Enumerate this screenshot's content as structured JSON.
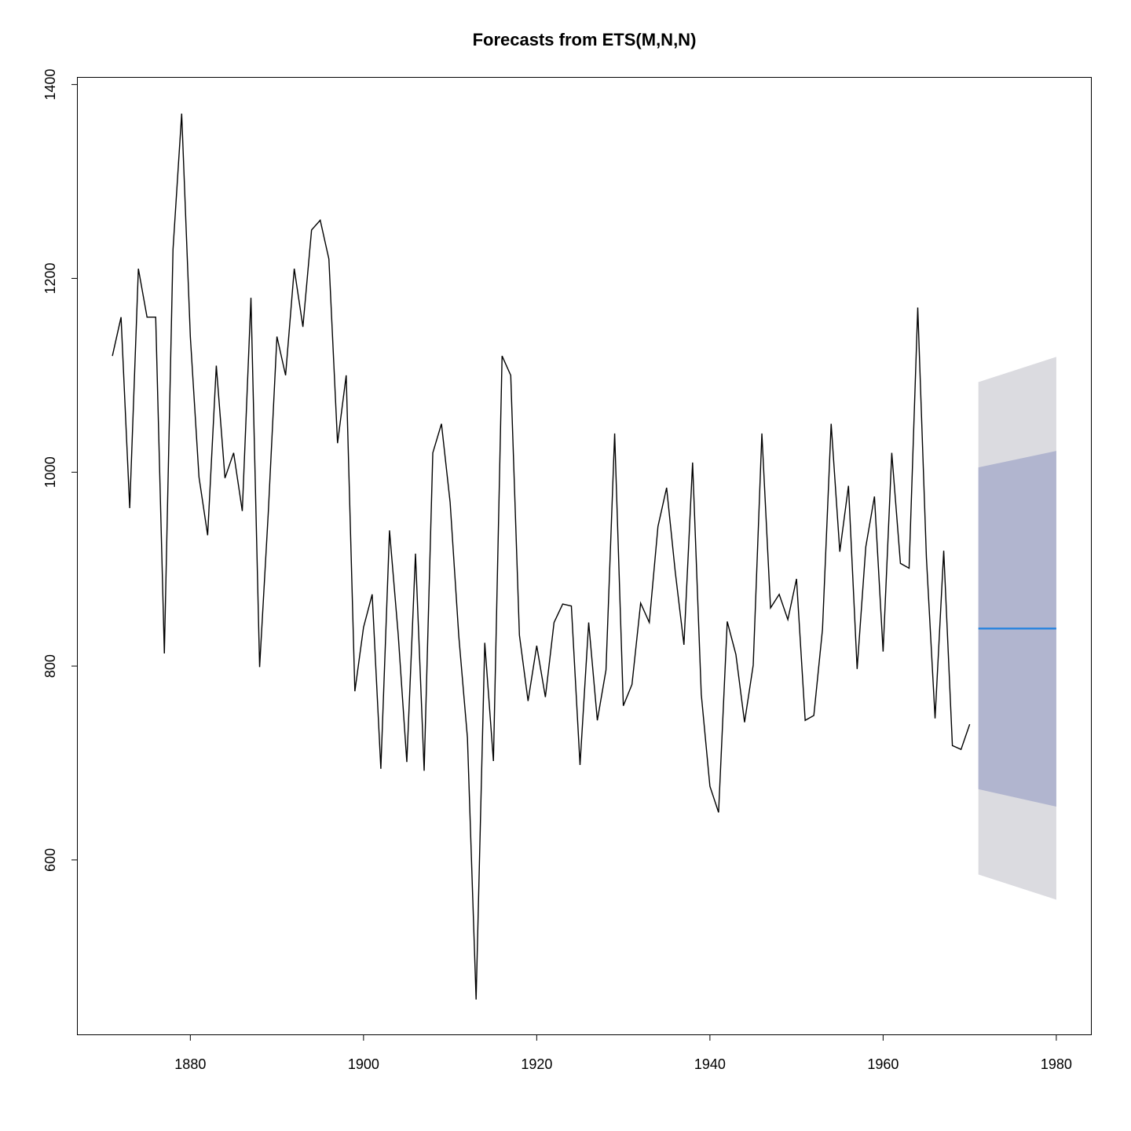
{
  "chart_data": {
    "type": "line",
    "title": "Forecasts from ETS(M,N,N)",
    "xlabel": "",
    "ylabel": "",
    "xlim": [
      1867,
      1984
    ],
    "ylim": [
      420,
      1407
    ],
    "x_ticks": [
      1880,
      1900,
      1920,
      1940,
      1960,
      1980
    ],
    "y_ticks": [
      600,
      800,
      1000,
      1200,
      1400
    ],
    "x_tick_labels": [
      "1880",
      "1900",
      "1920",
      "1940",
      "1960",
      "1980"
    ],
    "y_tick_labels": [
      "600",
      "800",
      "1000",
      "1200",
      "1400"
    ],
    "grid": false,
    "colors": {
      "observed": "#000000",
      "forecast": "#2e86de",
      "interval_80": "#b1b5cf",
      "interval_95": "#dbdbe0"
    },
    "series": [
      {
        "x": [
          1871,
          1872,
          1873,
          1874,
          1875,
          1876,
          1877,
          1878,
          1879,
          1880,
          1881,
          1882,
          1883,
          1884,
          1885,
          1886,
          1887,
          1888,
          1889,
          1890,
          1891,
          1892,
          1893,
          1894,
          1895,
          1896,
          1897,
          1898,
          1899,
          1900,
          1901,
          1902,
          1903,
          1904,
          1905,
          1906,
          1907,
          1908,
          1909,
          1910,
          1911,
          1912,
          1913,
          1914,
          1915,
          1916,
          1917,
          1918,
          1919,
          1920,
          1921,
          1922,
          1923,
          1924,
          1925,
          1926,
          1927,
          1928,
          1929,
          1930,
          1931,
          1932,
          1933,
          1934,
          1935,
          1936,
          1937,
          1938,
          1939,
          1940,
          1941,
          1942,
          1943,
          1944,
          1945,
          1946,
          1947,
          1948,
          1949,
          1950,
          1951,
          1952,
          1953,
          1954,
          1955,
          1956,
          1957,
          1958,
          1959,
          1960,
          1961,
          1962,
          1963,
          1964,
          1965,
          1966,
          1967,
          1968,
          1969,
          1970
        ],
        "values": [
          1120,
          1160,
          963,
          1210,
          1160,
          1160,
          813,
          1230,
          1370,
          1140,
          995,
          935,
          1110,
          994,
          1020,
          960,
          1180,
          799,
          958,
          1140,
          1100,
          1210,
          1150,
          1250,
          1260,
          1220,
          1030,
          1100,
          774,
          840,
          874,
          694,
          940,
          833,
          701,
          916,
          692,
          1020,
          1050,
          969,
          831,
          726,
          456,
          824,
          702,
          1120,
          1100,
          832,
          764,
          821,
          768,
          845,
          864,
          862,
          698,
          845,
          744,
          796,
          1040,
          759,
          781,
          865,
          845,
          944,
          984,
          897,
          822,
          1010,
          771,
          676,
          649,
          846,
          812,
          742,
          801,
          1040,
          860,
          874,
          848,
          890,
          744,
          749,
          838,
          1050,
          918,
          986,
          797,
          923,
          975,
          815,
          1020,
          906,
          901,
          1170,
          912,
          746,
          919,
          718,
          714,
          740
        ]
      }
    ],
    "forecast": {
      "x": [
        1971,
        1980
      ],
      "point": [
        838.7,
        838.7
      ],
      "lo80": [
        673,
        655
      ],
      "hi80": [
        1005,
        1022
      ],
      "lo95": [
        585,
        559
      ],
      "hi95": [
        1093,
        1119
      ]
    }
  }
}
